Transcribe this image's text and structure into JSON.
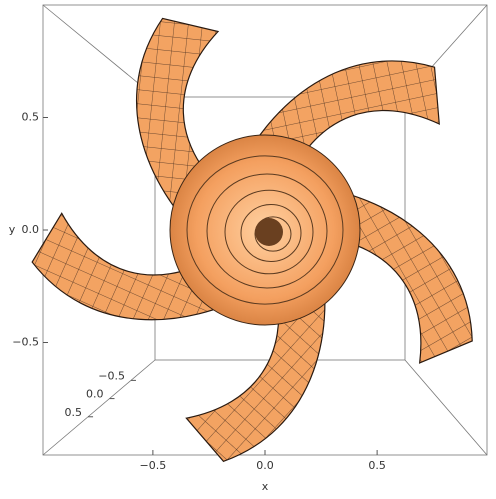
{
  "chart_data": {
    "type": "surface3d",
    "x_label": "x",
    "y_label": "y",
    "xlim": [
      -0.99,
      0.99
    ],
    "ylim": [
      -1.0,
      1.0
    ],
    "zlim": [
      -1.06,
      1.55
    ],
    "xticks": [
      {
        "value": -0.5,
        "label": "−0.5"
      },
      {
        "value": 0,
        "label": "0.0"
      },
      0.5
    ],
    "yticks": [
      0.5,
      {
        "value": 0,
        "label": "0.0"
      },
      {
        "value": -0.5,
        "label": "−0.5"
      }
    ],
    "zticks": [
      {
        "value": -0.5,
        "label": "−0.5"
      },
      {
        "value": 0,
        "label": "0.0"
      },
      0.5
    ],
    "color": "#f0a060"
  }
}
